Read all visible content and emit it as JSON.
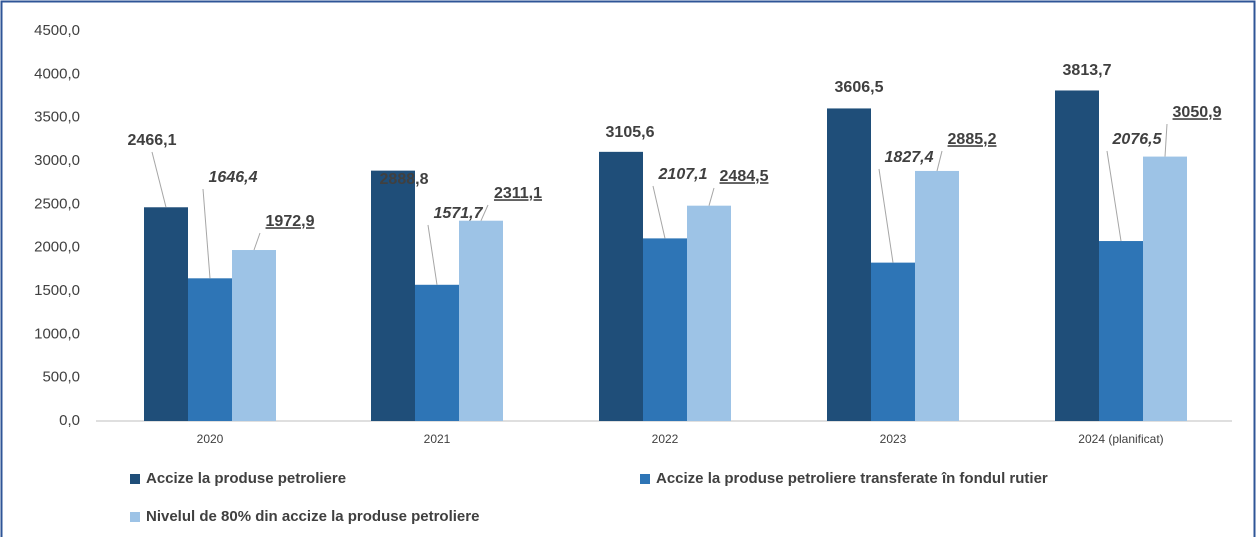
{
  "chart_data": {
    "type": "bar",
    "categories": [
      "2020",
      "2021",
      "2022",
      "2023",
      "2024 (planificat)"
    ],
    "series": [
      {
        "name": "Accize la produse petroliere",
        "color": "#1f4e79",
        "values": [
          2466.1,
          2888.8,
          3105.6,
          3606.5,
          3813.7
        ],
        "value_labels": [
          "2466,1",
          "2888,8",
          "3105,6",
          "3606,5",
          "3813,7"
        ]
      },
      {
        "name": "Accize la produse petroliere transferate în fondul rutier",
        "color": "#2e75b6",
        "values": [
          1646.4,
          1571.7,
          2107.1,
          1827.4,
          2076.5
        ],
        "value_labels": [
          "1646,4",
          "1571,7",
          "2107,1",
          "1827,4",
          "2076,5"
        ]
      },
      {
        "name": "Nivelul de 80% din accize la produse petroliere",
        "color": "#9dc3e6",
        "values": [
          1972.9,
          2311.1,
          2484.5,
          2885.2,
          3050.9
        ],
        "value_labels": [
          "1972,9",
          "2311,1",
          "2484,5",
          "2885,2",
          "3050,9"
        ]
      }
    ],
    "ylim": [
      0,
      4500
    ],
    "yticks": [
      {
        "value": 0,
        "label": "0,0"
      },
      {
        "value": 500,
        "label": "500,0"
      },
      {
        "value": 1000,
        "label": "1000,0"
      },
      {
        "value": 1500,
        "label": "1500,0"
      },
      {
        "value": 2000,
        "label": "2000,0"
      },
      {
        "value": 2500,
        "label": "2500,0"
      },
      {
        "value": 3000,
        "label": "3000,0"
      },
      {
        "value": 3500,
        "label": "3500,0"
      },
      {
        "value": 4000,
        "label": "4000,0"
      },
      {
        "value": 4500,
        "label": "4500,0"
      }
    ],
    "grid": false
  }
}
